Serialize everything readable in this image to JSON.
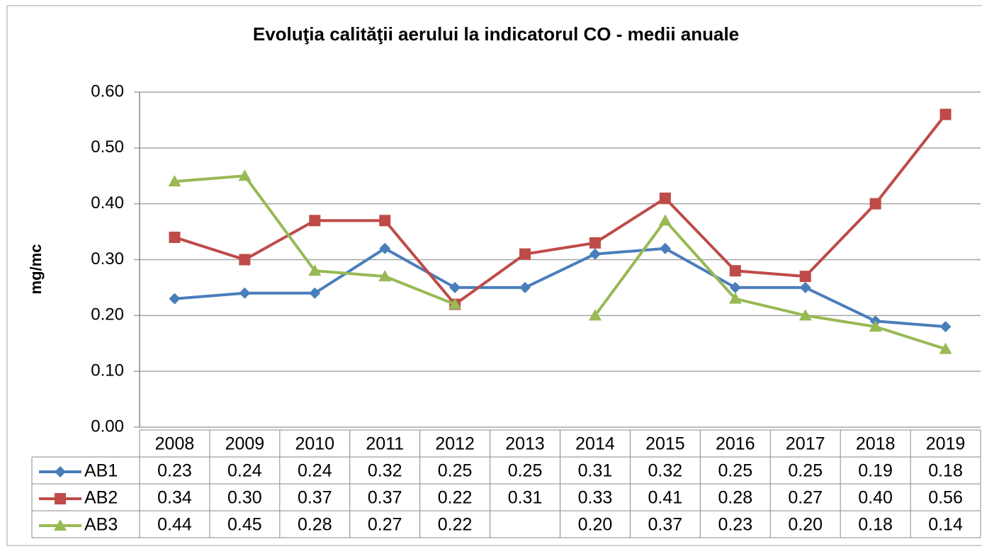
{
  "chart_data": {
    "type": "line",
    "title": "Evoluţia calităţii aerului la indicatorul CO - medii anuale",
    "y_label": "mg/mc",
    "categories": [
      "2008",
      "2009",
      "2010",
      "2011",
      "2012",
      "2013",
      "2014",
      "2015",
      "2016",
      "2017",
      "2018",
      "2019"
    ],
    "series": [
      {
        "name": "AB1",
        "color": "#4a7ebb",
        "marker": "diamond",
        "values": [
          0.23,
          0.24,
          0.24,
          0.32,
          0.25,
          0.25,
          0.31,
          0.32,
          0.25,
          0.25,
          0.19,
          0.18
        ],
        "value_labels": [
          "0.23",
          "0.24",
          "0.24",
          "0.32",
          "0.25",
          "0.25",
          "0.31",
          "0.32",
          "0.25",
          "0.25",
          "0.19",
          "0.18"
        ]
      },
      {
        "name": "AB2",
        "color": "#be4b48",
        "marker": "square",
        "values": [
          0.34,
          0.3,
          0.37,
          0.37,
          0.22,
          0.31,
          0.33,
          0.41,
          0.28,
          0.27,
          0.4,
          0.56
        ],
        "value_labels": [
          "0.34",
          "0.30",
          "0.37",
          "0.37",
          "0.22",
          "0.31",
          "0.33",
          "0.41",
          "0.28",
          "0.27",
          "0.40",
          "0.56"
        ]
      },
      {
        "name": "AB3",
        "color": "#98b954",
        "marker": "triangle",
        "values": [
          0.44,
          0.45,
          0.28,
          0.27,
          0.22,
          null,
          0.2,
          0.37,
          0.23,
          0.2,
          0.18,
          0.14
        ],
        "value_labels": [
          "0.44",
          "0.45",
          "0.28",
          "0.27",
          "0.22",
          null,
          "0.20",
          "0.37",
          "0.23",
          "0.20",
          "0.18",
          "0.14"
        ]
      }
    ],
    "ylim": [
      0,
      0.6
    ],
    "yticks": [
      {
        "value": 0,
        "label": "0.00"
      },
      {
        "value": 0.1,
        "label": "0.10"
      },
      {
        "value": 0.2,
        "label": "0.20"
      },
      {
        "value": 0.3,
        "label": "0.30"
      },
      {
        "value": 0.4,
        "label": "0.40"
      },
      {
        "value": 0.5,
        "label": "0.50"
      },
      {
        "value": 0.6,
        "label": "0.60"
      }
    ],
    "grid": true,
    "legend": "table"
  }
}
